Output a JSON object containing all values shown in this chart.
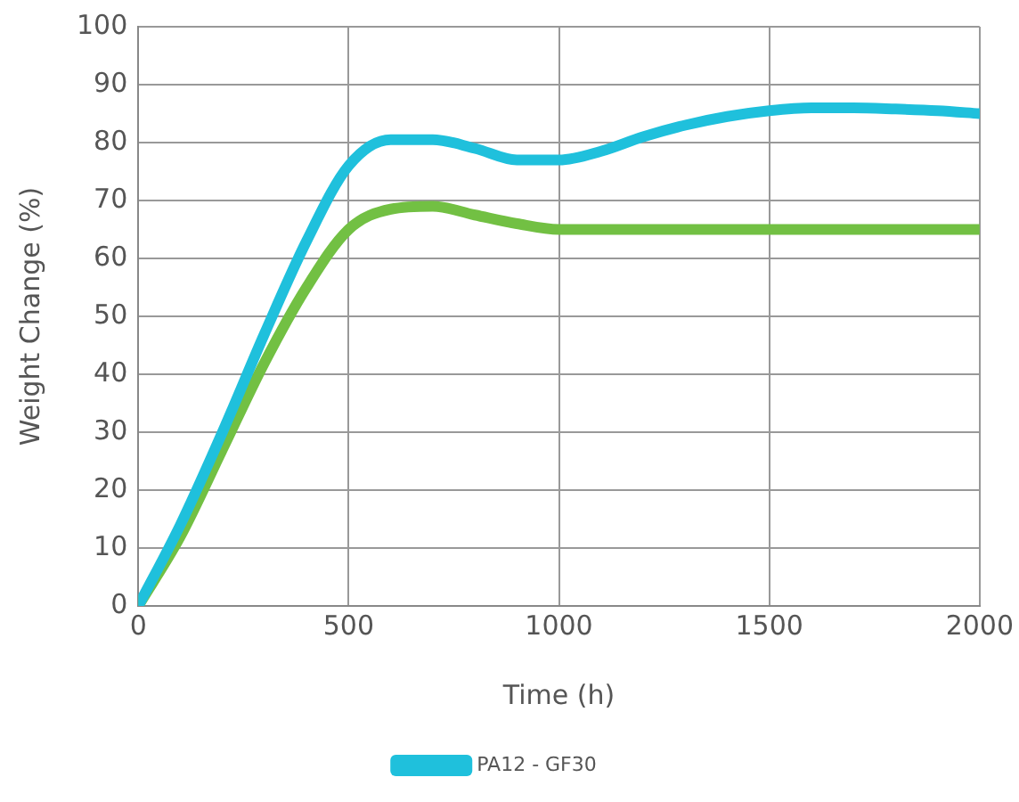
{
  "chart_data": {
    "type": "line",
    "xlabel": "Time (h)",
    "ylabel": "Weight Change (%)",
    "xlim": [
      0,
      2000
    ],
    "xticks": [
      0,
      500,
      1000,
      1500,
      2000
    ],
    "ylim": [
      0,
      100
    ],
    "yticks": [
      0,
      10,
      20,
      30,
      40,
      50,
      60,
      70,
      80,
      90,
      100
    ],
    "grid": true,
    "legend": "bottom",
    "marker": "none",
    "line_style": "solid",
    "series": [
      {
        "name": "PA12 - GF30",
        "color": "#1fc0dc",
        "x": [
          0,
          100,
          200,
          300,
          400,
          500,
          600,
          700,
          800,
          900,
          1000,
          1100,
          1200,
          1300,
          1400,
          1500,
          1600,
          1700,
          1800,
          1900,
          2000
        ],
        "values": [
          0,
          14,
          30,
          47,
          63,
          76,
          80.5,
          80.5,
          79,
          77,
          77,
          78.5,
          81,
          83,
          84.5,
          85.5,
          86,
          86,
          85.8,
          85.5,
          85
        ]
      },
      {
        "color": "#72c043",
        "x": [
          0,
          100,
          200,
          300,
          400,
          500,
          600,
          700,
          800,
          900,
          1000,
          1200,
          1500,
          2000
        ],
        "values": [
          0,
          12,
          27,
          42,
          55,
          65,
          68.5,
          69,
          67.5,
          66,
          65,
          65,
          65,
          65
        ]
      }
    ]
  }
}
